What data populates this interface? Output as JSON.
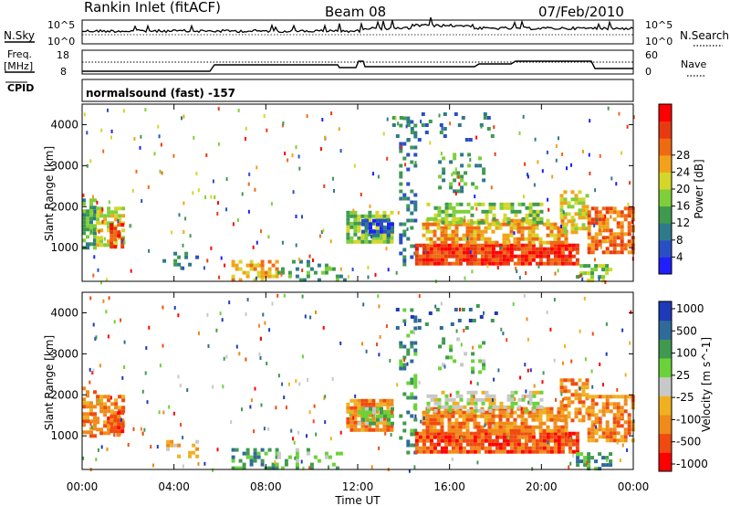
{
  "header": {
    "station": "Rankin Inlet (fitACF)",
    "beam": "Beam 08",
    "date": "07/Feb/2010"
  },
  "top_panels": {
    "nsky_label": "N.Sky",
    "nsky_ticks": [
      "10^5",
      "10^0"
    ],
    "nsearch_label": "N.Search",
    "freq_label_line1": "Freq.",
    "freq_label_line2": "[MHz]",
    "freq_ticks": [
      "18",
      "8"
    ],
    "nave_label": "Nave",
    "nave_ticks": [
      "60",
      "0"
    ],
    "cpid_label": "CPID",
    "cpid_text": "normalsound (fast) -157"
  },
  "colors": {
    "power_scale": [
      "#1e1eff",
      "#2a4fc4",
      "#2f7a8a",
      "#3f9a50",
      "#7fcf3a",
      "#d4d62a",
      "#f2a21a",
      "#f06a12",
      "#e83a10",
      "#ff0000"
    ],
    "velocity_scale": [
      "#ff0000",
      "#f04a10",
      "#f08a1a",
      "#f0b020",
      "#c8c8c8",
      "#6bd23a",
      "#3f9a50",
      "#2f6a9a",
      "#1e3ab8"
    ]
  },
  "chart_data": [
    {
      "type": "heatmap",
      "title": "",
      "xlabel": "Time UT",
      "ylabel": "Slant Range [km]",
      "x_ticks": [
        "00:00",
        "04:00",
        "08:00",
        "12:00",
        "16:00",
        "20:00",
        "00:00"
      ],
      "y_ticks": [
        "1000",
        "2000",
        "3000",
        "4000"
      ],
      "ylim": [
        180,
        4500
      ],
      "colorbar_label": "Power [dB]",
      "colorbar_ticks": [
        "4",
        "8",
        "12",
        "16",
        "20",
        "24",
        "28"
      ],
      "colorbar_range": [
        0,
        32
      ]
    },
    {
      "type": "heatmap",
      "title": "",
      "xlabel": "Time UT",
      "ylabel": "Slant Range [km]",
      "x_ticks": [
        "00:00",
        "04:00",
        "08:00",
        "12:00",
        "16:00",
        "20:00",
        "00:00"
      ],
      "y_ticks": [
        "1000",
        "2000",
        "3000",
        "4000"
      ],
      "ylim": [
        180,
        4500
      ],
      "colorbar_label": "Velocity [m s^-1]",
      "colorbar_ticks": [
        "1000",
        "500",
        "100",
        "25",
        "-25",
        "-100",
        "-500",
        "-1000"
      ]
    }
  ]
}
